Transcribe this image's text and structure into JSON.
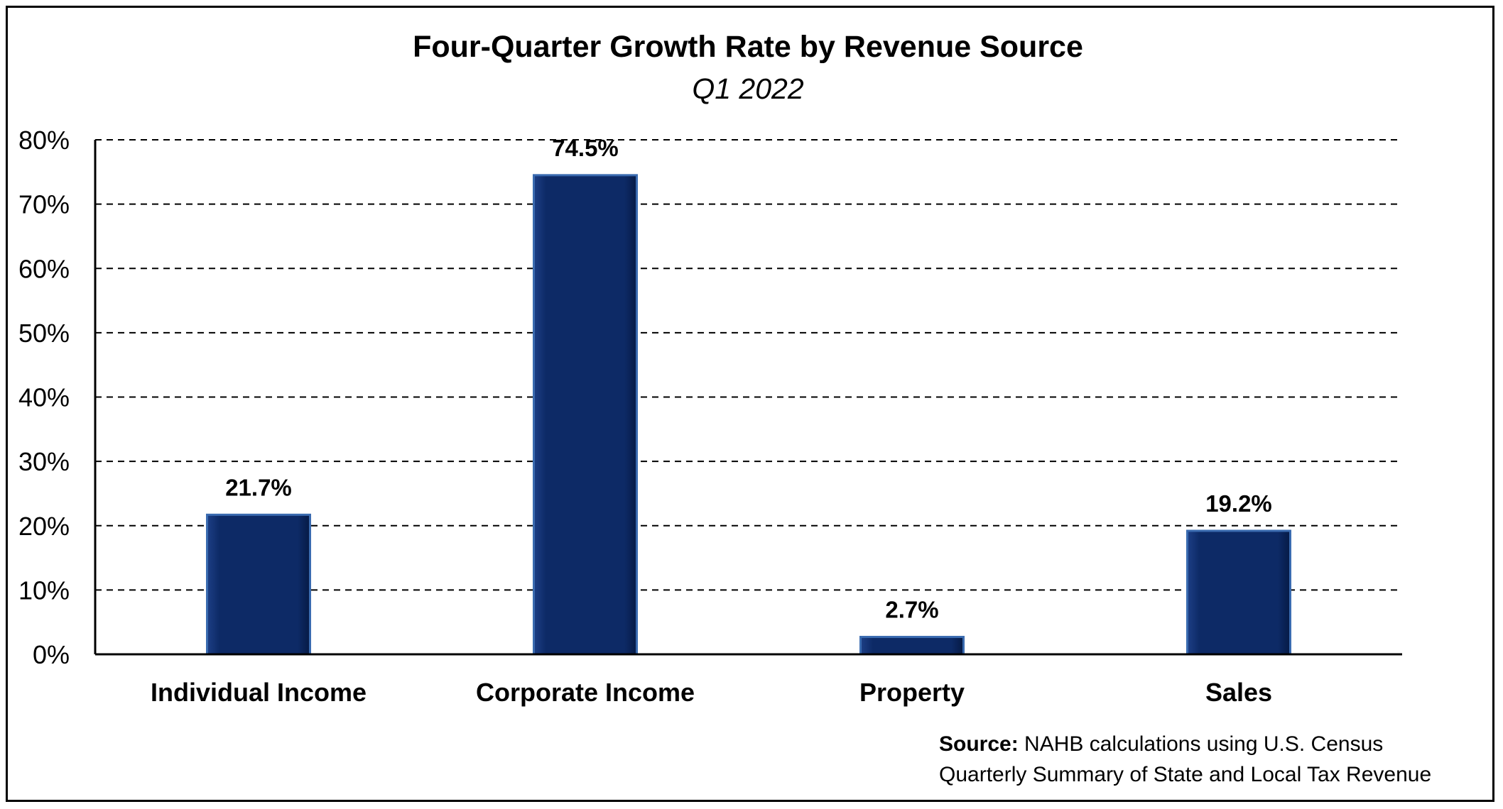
{
  "chart_data": {
    "type": "bar",
    "title": "Four-Quarter Growth Rate by Revenue Source",
    "subtitle": "Q1 2022",
    "categories": [
      "Individual Income",
      "Corporate Income",
      "Property",
      "Sales"
    ],
    "values": [
      21.7,
      74.5,
      2.7,
      19.2
    ],
    "data_labels": [
      "21.7%",
      "74.5%",
      "2.7%",
      "19.2%"
    ],
    "xlabel": "",
    "ylabel": "",
    "ylim": [
      0,
      80
    ],
    "yticks": [
      0,
      10,
      20,
      30,
      40,
      50,
      60,
      70,
      80
    ],
    "ytick_labels": [
      "0%",
      "10%",
      "20%",
      "30%",
      "40%",
      "50%",
      "60%",
      "70%",
      "80%"
    ],
    "grid": "dashed horizontal",
    "legend": "none",
    "bar_color": "#0d2a66",
    "bar_edge_color": "#3a6bb0"
  },
  "source": {
    "label": "Source:",
    "line1": " NAHB calculations using U.S. Census",
    "line2": "Quarterly Summary of State and Local Tax Revenue"
  }
}
